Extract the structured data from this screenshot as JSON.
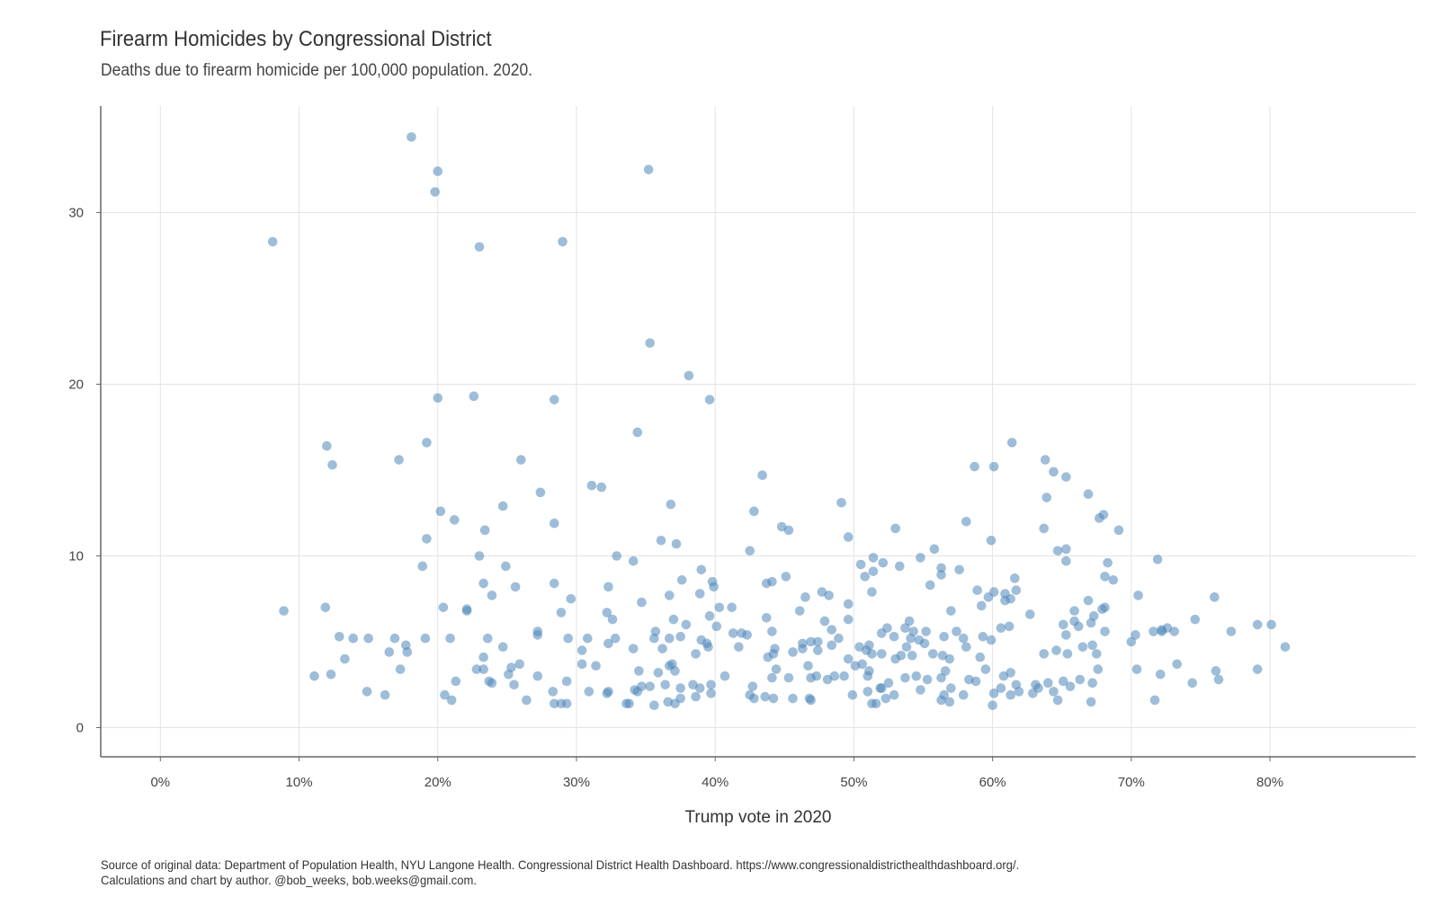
{
  "title": "Firearm Homicides by Congressional District",
  "subtitle": "Deaths due to firearm homicide per 100,000 population. 2020.",
  "footer": {
    "source": "Source of original data: Department of Population Health, NYU Langone Health. Congressional District Health Dashboard. https://www.congressionaldistricthealthdashboard.org/.",
    "credit": "Calculations and chart by author. @bob_weeks, bob.weeks@gmail.com."
  },
  "chart_data": {
    "type": "scatter",
    "title": "Firearm Homicides by Congressional District",
    "subtitle": "Deaths due to firearm homicide per 100,000 population. 2020.",
    "xlabel": "Trump vote in 2020",
    "ylabel": "",
    "xlim": [
      -0.043,
      0.905
    ],
    "ylim": [
      -1.7,
      36.2
    ],
    "x_ticks": [
      0,
      0.1,
      0.2,
      0.3,
      0.4,
      0.5,
      0.6,
      0.7,
      0.8
    ],
    "x_tick_labels": [
      "0%",
      "10%",
      "20%",
      "30%",
      "40%",
      "50%",
      "60%",
      "70%",
      "80%"
    ],
    "y_ticks": [
      0,
      10,
      20,
      30
    ],
    "y_tick_labels": [
      "0",
      "10",
      "20",
      "30"
    ],
    "grid": true,
    "point_color": "#4f86b9",
    "points": [
      [
        0.081,
        28.3
      ],
      [
        0.181,
        34.4
      ],
      [
        0.2,
        32.4
      ],
      [
        0.198,
        31.2
      ],
      [
        0.352,
        32.5
      ],
      [
        0.29,
        28.3
      ],
      [
        0.23,
        28.0
      ],
      [
        0.353,
        22.4
      ],
      [
        0.381,
        20.5
      ],
      [
        0.2,
        19.2
      ],
      [
        0.226,
        19.3
      ],
      [
        0.284,
        19.1
      ],
      [
        0.396,
        19.1
      ],
      [
        0.344,
        17.2
      ],
      [
        0.12,
        16.4
      ],
      [
        0.124,
        15.3
      ],
      [
        0.172,
        15.6
      ],
      [
        0.192,
        16.6
      ],
      [
        0.26,
        15.6
      ],
      [
        0.614,
        16.6
      ],
      [
        0.638,
        15.6
      ],
      [
        0.587,
        15.2
      ],
      [
        0.601,
        15.2
      ],
      [
        0.644,
        14.9
      ],
      [
        0.653,
        14.6
      ],
      [
        0.434,
        14.7
      ],
      [
        0.311,
        14.1
      ],
      [
        0.318,
        14.0
      ],
      [
        0.274,
        13.7
      ],
      [
        0.368,
        13.0
      ],
      [
        0.247,
        12.9
      ],
      [
        0.669,
        13.6
      ],
      [
        0.639,
        13.4
      ],
      [
        0.491,
        13.1
      ],
      [
        0.202,
        12.6
      ],
      [
        0.212,
        12.1
      ],
      [
        0.428,
        12.6
      ],
      [
        0.68,
        12.4
      ],
      [
        0.677,
        12.2
      ],
      [
        0.581,
        12.0
      ],
      [
        0.284,
        11.9
      ],
      [
        0.448,
        11.7
      ],
      [
        0.453,
        11.5
      ],
      [
        0.53,
        11.6
      ],
      [
        0.234,
        11.5
      ],
      [
        0.637,
        11.6
      ],
      [
        0.691,
        11.5
      ],
      [
        0.192,
        11.0
      ],
      [
        0.361,
        10.9
      ],
      [
        0.372,
        10.7
      ],
      [
        0.496,
        11.1
      ],
      [
        0.599,
        10.9
      ],
      [
        0.425,
        10.3
      ],
      [
        0.558,
        10.4
      ],
      [
        0.647,
        10.3
      ],
      [
        0.653,
        10.4
      ],
      [
        0.23,
        10.0
      ],
      [
        0.329,
        10.0
      ],
      [
        0.341,
        9.7
      ],
      [
        0.548,
        9.9
      ],
      [
        0.514,
        9.9
      ],
      [
        0.719,
        9.8
      ],
      [
        0.653,
        9.7
      ],
      [
        0.505,
        9.5
      ],
      [
        0.521,
        9.6
      ],
      [
        0.189,
        9.4
      ],
      [
        0.249,
        9.4
      ],
      [
        0.39,
        9.2
      ],
      [
        0.533,
        9.4
      ],
      [
        0.563,
        9.3
      ],
      [
        0.576,
        9.2
      ],
      [
        0.514,
        9.1
      ],
      [
        0.508,
        8.8
      ],
      [
        0.681,
        8.8
      ],
      [
        0.683,
        9.6
      ],
      [
        0.437,
        8.4
      ],
      [
        0.441,
        8.5
      ],
      [
        0.451,
        8.8
      ],
      [
        0.563,
        8.9
      ],
      [
        0.616,
        8.7
      ],
      [
        0.687,
        8.6
      ],
      [
        0.233,
        8.4
      ],
      [
        0.284,
        8.4
      ],
      [
        0.256,
        8.2
      ],
      [
        0.323,
        8.2
      ],
      [
        0.398,
        8.5
      ],
      [
        0.399,
        8.2
      ],
      [
        0.513,
        7.9
      ],
      [
        0.555,
        8.3
      ],
      [
        0.589,
        8.0
      ],
      [
        0.601,
        7.9
      ],
      [
        0.617,
        8.0
      ],
      [
        0.609,
        7.8
      ],
      [
        0.239,
        7.7
      ],
      [
        0.296,
        7.5
      ],
      [
        0.347,
        7.3
      ],
      [
        0.367,
        7.7
      ],
      [
        0.376,
        8.6
      ],
      [
        0.389,
        7.8
      ],
      [
        0.403,
        7.0
      ],
      [
        0.477,
        7.9
      ],
      [
        0.482,
        7.7
      ],
      [
        0.496,
        7.2
      ],
      [
        0.592,
        7.1
      ],
      [
        0.597,
        7.6
      ],
      [
        0.609,
        7.4
      ],
      [
        0.613,
        7.5
      ],
      [
        0.705,
        7.7
      ],
      [
        0.76,
        7.6
      ],
      [
        0.669,
        7.4
      ],
      [
        0.681,
        7.0
      ],
      [
        0.089,
        6.8
      ],
      [
        0.119,
        7.0
      ],
      [
        0.204,
        7.0
      ],
      [
        0.221,
        6.8
      ],
      [
        0.221,
        6.9
      ],
      [
        0.289,
        6.7
      ],
      [
        0.322,
        6.7
      ],
      [
        0.326,
        6.3
      ],
      [
        0.37,
        6.3
      ],
      [
        0.379,
        6.0
      ],
      [
        0.396,
        6.5
      ],
      [
        0.401,
        5.9
      ],
      [
        0.412,
        7.0
      ],
      [
        0.437,
        6.4
      ],
      [
        0.461,
        6.8
      ],
      [
        0.465,
        7.6
      ],
      [
        0.479,
        6.2
      ],
      [
        0.496,
        6.3
      ],
      [
        0.54,
        6.2
      ],
      [
        0.57,
        6.8
      ],
      [
        0.627,
        6.6
      ],
      [
        0.659,
        6.8
      ],
      [
        0.673,
        6.5
      ],
      [
        0.679,
        6.9
      ],
      [
        0.746,
        6.3
      ],
      [
        0.129,
        5.3
      ],
      [
        0.139,
        5.2
      ],
      [
        0.15,
        5.2
      ],
      [
        0.169,
        5.2
      ],
      [
        0.191,
        5.2
      ],
      [
        0.209,
        5.2
      ],
      [
        0.236,
        5.2
      ],
      [
        0.272,
        5.6
      ],
      [
        0.272,
        5.4
      ],
      [
        0.294,
        5.2
      ],
      [
        0.308,
        5.2
      ],
      [
        0.328,
        5.2
      ],
      [
        0.323,
        4.9
      ],
      [
        0.357,
        5.6
      ],
      [
        0.356,
        5.2
      ],
      [
        0.367,
        5.2
      ],
      [
        0.375,
        5.3
      ],
      [
        0.39,
        5.1
      ],
      [
        0.394,
        4.9
      ],
      [
        0.413,
        5.5
      ],
      [
        0.419,
        5.5
      ],
      [
        0.423,
        5.4
      ],
      [
        0.441,
        5.6
      ],
      [
        0.463,
        4.9
      ],
      [
        0.469,
        5.0
      ],
      [
        0.474,
        5.0
      ],
      [
        0.484,
        5.7
      ],
      [
        0.489,
        5.2
      ],
      [
        0.504,
        4.7
      ],
      [
        0.511,
        4.8
      ],
      [
        0.52,
        5.5
      ],
      [
        0.524,
        5.8
      ],
      [
        0.529,
        5.3
      ],
      [
        0.537,
        5.8
      ],
      [
        0.541,
        5.2
      ],
      [
        0.543,
        5.6
      ],
      [
        0.547,
        5.1
      ],
      [
        0.552,
        5.6
      ],
      [
        0.565,
        5.3
      ],
      [
        0.574,
        5.6
      ],
      [
        0.579,
        5.2
      ],
      [
        0.593,
        5.3
      ],
      [
        0.599,
        5.1
      ],
      [
        0.606,
        5.8
      ],
      [
        0.612,
        5.9
      ],
      [
        0.651,
        6.0
      ],
      [
        0.653,
        5.4
      ],
      [
        0.659,
        6.2
      ],
      [
        0.662,
        5.9
      ],
      [
        0.671,
        6.1
      ],
      [
        0.681,
        5.6
      ],
      [
        0.7,
        5.0
      ],
      [
        0.703,
        5.4
      ],
      [
        0.716,
        5.6
      ],
      [
        0.722,
        5.6
      ],
      [
        0.726,
        5.8
      ],
      [
        0.731,
        5.6
      ],
      [
        0.722,
        5.7
      ],
      [
        0.772,
        5.6
      ],
      [
        0.791,
        6.0
      ],
      [
        0.801,
        6.0
      ],
      [
        0.811,
        4.7
      ],
      [
        0.133,
        4.0
      ],
      [
        0.165,
        4.4
      ],
      [
        0.177,
        4.8
      ],
      [
        0.178,
        4.4
      ],
      [
        0.173,
        3.4
      ],
      [
        0.247,
        4.7
      ],
      [
        0.233,
        4.1
      ],
      [
        0.228,
        3.4
      ],
      [
        0.233,
        3.4
      ],
      [
        0.253,
        3.5
      ],
      [
        0.259,
        3.7
      ],
      [
        0.304,
        4.5
      ],
      [
        0.304,
        3.7
      ],
      [
        0.314,
        3.6
      ],
      [
        0.341,
        4.6
      ],
      [
        0.345,
        3.3
      ],
      [
        0.362,
        4.6
      ],
      [
        0.367,
        3.6
      ],
      [
        0.369,
        3.7
      ],
      [
        0.371,
        3.3
      ],
      [
        0.386,
        4.3
      ],
      [
        0.395,
        4.7
      ],
      [
        0.417,
        4.7
      ],
      [
        0.438,
        4.1
      ],
      [
        0.442,
        4.3
      ],
      [
        0.443,
        4.6
      ],
      [
        0.444,
        3.4
      ],
      [
        0.456,
        4.4
      ],
      [
        0.463,
        4.6
      ],
      [
        0.467,
        3.6
      ],
      [
        0.474,
        4.5
      ],
      [
        0.484,
        4.8
      ],
      [
        0.496,
        4.0
      ],
      [
        0.501,
        3.6
      ],
      [
        0.506,
        3.7
      ],
      [
        0.509,
        4.5
      ],
      [
        0.511,
        3.3
      ],
      [
        0.513,
        4.3
      ],
      [
        0.52,
        4.3
      ],
      [
        0.53,
        4.0
      ],
      [
        0.534,
        4.2
      ],
      [
        0.538,
        4.7
      ],
      [
        0.542,
        4.2
      ],
      [
        0.551,
        4.9
      ],
      [
        0.557,
        4.3
      ],
      [
        0.564,
        4.2
      ],
      [
        0.566,
        3.3
      ],
      [
        0.569,
        4.0
      ],
      [
        0.581,
        4.7
      ],
      [
        0.591,
        4.1
      ],
      [
        0.595,
        3.4
      ],
      [
        0.608,
        3.0
      ],
      [
        0.613,
        3.2
      ],
      [
        0.637,
        4.3
      ],
      [
        0.646,
        4.5
      ],
      [
        0.654,
        4.3
      ],
      [
        0.665,
        4.7
      ],
      [
        0.672,
        4.8
      ],
      [
        0.675,
        4.3
      ],
      [
        0.676,
        3.4
      ],
      [
        0.704,
        3.4
      ],
      [
        0.733,
        3.7
      ],
      [
        0.761,
        3.3
      ],
      [
        0.791,
        3.4
      ],
      [
        0.111,
        3.0
      ],
      [
        0.123,
        3.1
      ],
      [
        0.213,
        2.7
      ],
      [
        0.237,
        2.7
      ],
      [
        0.239,
        2.6
      ],
      [
        0.251,
        3.1
      ],
      [
        0.255,
        2.5
      ],
      [
        0.272,
        3.0
      ],
      [
        0.293,
        2.7
      ],
      [
        0.347,
        2.4
      ],
      [
        0.353,
        2.4
      ],
      [
        0.359,
        3.2
      ],
      [
        0.364,
        2.5
      ],
      [
        0.375,
        2.3
      ],
      [
        0.384,
        2.5
      ],
      [
        0.389,
        2.3
      ],
      [
        0.397,
        2.5
      ],
      [
        0.407,
        3.0
      ],
      [
        0.427,
        2.4
      ],
      [
        0.441,
        2.9
      ],
      [
        0.453,
        2.9
      ],
      [
        0.469,
        2.9
      ],
      [
        0.473,
        3.0
      ],
      [
        0.481,
        2.8
      ],
      [
        0.486,
        3.0
      ],
      [
        0.493,
        3.0
      ],
      [
        0.51,
        3.0
      ],
      [
        0.519,
        2.3
      ],
      [
        0.525,
        2.6
      ],
      [
        0.537,
        2.9
      ],
      [
        0.545,
        3.0
      ],
      [
        0.553,
        2.8
      ],
      [
        0.563,
        2.9
      ],
      [
        0.57,
        2.3
      ],
      [
        0.583,
        2.8
      ],
      [
        0.588,
        2.7
      ],
      [
        0.606,
        2.3
      ],
      [
        0.617,
        2.5
      ],
      [
        0.631,
        2.5
      ],
      [
        0.64,
        2.6
      ],
      [
        0.651,
        2.7
      ],
      [
        0.663,
        2.8
      ],
      [
        0.672,
        2.6
      ],
      [
        0.744,
        2.6
      ],
      [
        0.763,
        2.8
      ],
      [
        0.149,
        2.1
      ],
      [
        0.162,
        1.9
      ],
      [
        0.205,
        1.9
      ],
      [
        0.21,
        1.6
      ],
      [
        0.264,
        1.6
      ],
      [
        0.283,
        2.1
      ],
      [
        0.284,
        1.4
      ],
      [
        0.289,
        1.4
      ],
      [
        0.293,
        1.4
      ],
      [
        0.309,
        2.1
      ],
      [
        0.322,
        2.0
      ],
      [
        0.323,
        2.1
      ],
      [
        0.336,
        1.4
      ],
      [
        0.338,
        1.4
      ],
      [
        0.342,
        2.2
      ],
      [
        0.344,
        2.1
      ],
      [
        0.356,
        1.3
      ],
      [
        0.366,
        1.5
      ],
      [
        0.371,
        1.4
      ],
      [
        0.375,
        1.7
      ],
      [
        0.386,
        1.8
      ],
      [
        0.397,
        2.0
      ],
      [
        0.425,
        1.9
      ],
      [
        0.428,
        1.7
      ],
      [
        0.436,
        1.8
      ],
      [
        0.442,
        1.7
      ],
      [
        0.456,
        1.7
      ],
      [
        0.468,
        1.7
      ],
      [
        0.469,
        1.6
      ],
      [
        0.499,
        1.9
      ],
      [
        0.51,
        2.1
      ],
      [
        0.513,
        1.4
      ],
      [
        0.516,
        1.4
      ],
      [
        0.52,
        2.3
      ],
      [
        0.523,
        1.7
      ],
      [
        0.529,
        1.9
      ],
      [
        0.548,
        2.2
      ],
      [
        0.563,
        1.6
      ],
      [
        0.565,
        1.9
      ],
      [
        0.569,
        1.5
      ],
      [
        0.579,
        1.9
      ],
      [
        0.6,
        1.3
      ],
      [
        0.601,
        2.0
      ],
      [
        0.613,
        1.9
      ],
      [
        0.619,
        2.1
      ],
      [
        0.629,
        2.0
      ],
      [
        0.633,
        2.3
      ],
      [
        0.644,
        2.1
      ],
      [
        0.647,
        1.6
      ],
      [
        0.656,
        2.4
      ],
      [
        0.671,
        1.5
      ],
      [
        0.717,
        1.6
      ],
      [
        0.721,
        3.1
      ]
    ]
  }
}
